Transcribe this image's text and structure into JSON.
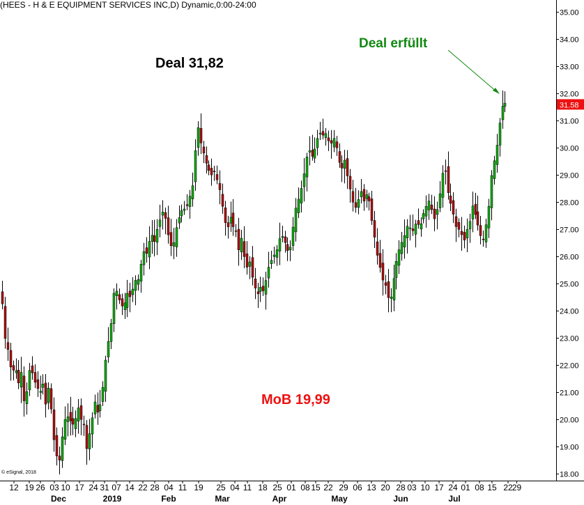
{
  "chart_data": {
    "type": "candlestick",
    "title": "(HEES - H & E EQUIPMENT SERVICES INC,D) Dynamic,0:00-24:00",
    "credit": "© eSignal, 2018",
    "last_price": "31.58",
    "ylim": [
      17.7,
      35.6
    ],
    "y_ticks": [
      "18.00",
      "19.00",
      "20.00",
      "21.00",
      "22.00",
      "23.00",
      "24.00",
      "25.00",
      "26.00",
      "27.00",
      "28.00",
      "29.00",
      "30.00",
      "31.00",
      "32.00",
      "33.00",
      "34.00",
      "35.00"
    ],
    "x_ticks": [
      "12",
      "19",
      "26",
      "03",
      "10",
      "17",
      "24",
      "31",
      "07",
      "14",
      "22",
      "28",
      "04",
      "11",
      "19",
      "25",
      "04",
      "11",
      "18",
      "25",
      "01",
      "08",
      "15",
      "22",
      "29",
      "06",
      "13",
      "20",
      "28",
      "03",
      "10",
      "17",
      "24",
      "01",
      "08",
      "15",
      "22",
      "29"
    ],
    "months": [
      "Dec",
      "2019",
      "Feb",
      "Mar",
      "Apr",
      "May",
      "Jun",
      "Jul"
    ],
    "colors": {
      "up": "#11aa11",
      "down": "#aa1111",
      "accent": "#ee1111"
    },
    "annotations": [
      {
        "text": "Deal 31,82",
        "color": "#000000"
      },
      {
        "text": "Deal erfüllt",
        "color": "#118811"
      },
      {
        "text": "MoB 19,99",
        "color": "#ee1111"
      }
    ],
    "series_path": [
      [
        0,
        25.0
      ],
      [
        3,
        24.7
      ],
      [
        7,
        23.8
      ],
      [
        10,
        22.5
      ],
      [
        14,
        22.6
      ],
      [
        18,
        21.6
      ],
      [
        23,
        22.0
      ],
      [
        28,
        21.3
      ],
      [
        33,
        21.8
      ],
      [
        37,
        20.4
      ],
      [
        41,
        21.2
      ],
      [
        45,
        22.0
      ],
      [
        50,
        21.5
      ],
      [
        54,
        21.2
      ],
      [
        59,
        21.0
      ],
      [
        65,
        21.4
      ],
      [
        69,
        20.0
      ],
      [
        72,
        21.5
      ],
      [
        76,
        20.1
      ],
      [
        80,
        19.0
      ],
      [
        86,
        18.3
      ],
      [
        91,
        19.4
      ],
      [
        96,
        20.2
      ],
      [
        101,
        20.0
      ],
      [
        106,
        19.8
      ],
      [
        110,
        20.0
      ],
      [
        115,
        20.5
      ],
      [
        118,
        20.0
      ],
      [
        122,
        19.8
      ],
      [
        126,
        18.9
      ],
      [
        130,
        19.5
      ],
      [
        134,
        20.1
      ],
      [
        138,
        20.7
      ],
      [
        142,
        20.2
      ],
      [
        146,
        20.6
      ],
      [
        150,
        21.3
      ],
      [
        154,
        22.4
      ],
      [
        158,
        23.0
      ],
      [
        162,
        23.7
      ],
      [
        166,
        25.0
      ],
      [
        170,
        24.6
      ],
      [
        174,
        24.3
      ],
      [
        178,
        24.1
      ],
      [
        182,
        24.4
      ],
      [
        186,
        24.8
      ],
      [
        190,
        24.3
      ],
      [
        194,
        25.2
      ],
      [
        199,
        25.0
      ],
      [
        203,
        25.6
      ],
      [
        208,
        26.2
      ],
      [
        212,
        26.1
      ],
      [
        216,
        26.6
      ],
      [
        220,
        26.8
      ],
      [
        224,
        26.5
      ],
      [
        228,
        27.1
      ],
      [
        232,
        27.4
      ],
      [
        236,
        27.7
      ],
      [
        240,
        27.3
      ],
      [
        244,
        26.6
      ],
      [
        248,
        26.3
      ],
      [
        252,
        26.6
      ],
      [
        256,
        27.3
      ],
      [
        260,
        27.5
      ],
      [
        264,
        27.8
      ],
      [
        268,
        27.7
      ],
      [
        272,
        28.0
      ],
      [
        276,
        28.4
      ],
      [
        280,
        28.8
      ],
      [
        284,
        31.1
      ],
      [
        288,
        30.3
      ],
      [
        292,
        30.0
      ],
      [
        296,
        29.5
      ],
      [
        300,
        29.3
      ],
      [
        304,
        28.9
      ],
      [
        308,
        29.2
      ],
      [
        312,
        28.9
      ],
      [
        316,
        28.6
      ],
      [
        320,
        28.0
      ],
      [
        324,
        27.3
      ],
      [
        328,
        27.0
      ],
      [
        332,
        27.5
      ],
      [
        336,
        27.1
      ],
      [
        340,
        27.0
      ],
      [
        344,
        26.2
      ],
      [
        348,
        26.7
      ],
      [
        352,
        26.0
      ],
      [
        356,
        25.6
      ],
      [
        360,
        25.8
      ],
      [
        364,
        25.2
      ],
      [
        368,
        24.8
      ],
      [
        372,
        24.6
      ],
      [
        376,
        24.9
      ],
      [
        380,
        24.7
      ],
      [
        384,
        25.2
      ],
      [
        388,
        25.7
      ],
      [
        392,
        25.9
      ],
      [
        396,
        26.1
      ],
      [
        400,
        26.3
      ],
      [
        404,
        26.8
      ],
      [
        408,
        26.7
      ],
      [
        412,
        26.4
      ],
      [
        416,
        26.1
      ],
      [
        420,
        26.5
      ],
      [
        424,
        27.5
      ],
      [
        428,
        28.0
      ],
      [
        432,
        28.2
      ],
      [
        436,
        28.8
      ],
      [
        440,
        29.3
      ],
      [
        444,
        30.1
      ],
      [
        448,
        29.6
      ],
      [
        452,
        29.8
      ],
      [
        456,
        30.2
      ],
      [
        460,
        30.6
      ],
      [
        464,
        30.4
      ],
      [
        468,
        30.6
      ],
      [
        472,
        30.3
      ],
      [
        476,
        30.1
      ],
      [
        480,
        30.4
      ],
      [
        484,
        30.1
      ],
      [
        488,
        29.5
      ],
      [
        492,
        29.2
      ],
      [
        496,
        29.6
      ],
      [
        500,
        29.0
      ],
      [
        504,
        28.5
      ],
      [
        508,
        28.0
      ],
      [
        512,
        27.8
      ],
      [
        516,
        28.1
      ],
      [
        520,
        28.4
      ],
      [
        524,
        28.0
      ],
      [
        528,
        28.3
      ],
      [
        532,
        28.0
      ],
      [
        536,
        27.2
      ],
      [
        540,
        26.6
      ],
      [
        544,
        25.9
      ],
      [
        548,
        25.5
      ],
      [
        552,
        25.0
      ],
      [
        556,
        24.9
      ],
      [
        560,
        24.3
      ],
      [
        564,
        24.6
      ],
      [
        568,
        25.5
      ],
      [
        572,
        26.0
      ],
      [
        576,
        26.4
      ],
      [
        580,
        26.6
      ],
      [
        584,
        26.9
      ],
      [
        588,
        27.3
      ],
      [
        592,
        26.8
      ],
      [
        596,
        27.1
      ],
      [
        600,
        27.3
      ],
      [
        604,
        27.0
      ],
      [
        608,
        27.5
      ],
      [
        612,
        27.7
      ],
      [
        616,
        28.1
      ],
      [
        620,
        27.9
      ],
      [
        624,
        27.3
      ],
      [
        628,
        27.6
      ],
      [
        632,
        28.1
      ],
      [
        636,
        29.0
      ],
      [
        640,
        29.3
      ],
      [
        644,
        28.4
      ],
      [
        648,
        28.0
      ],
      [
        652,
        27.6
      ],
      [
        656,
        27.1
      ],
      [
        660,
        27.0
      ],
      [
        664,
        26.8
      ],
      [
        668,
        26.6
      ],
      [
        672,
        27.0
      ],
      [
        676,
        27.3
      ],
      [
        680,
        27.9
      ],
      [
        684,
        27.5
      ],
      [
        688,
        27.1
      ],
      [
        692,
        26.7
      ],
      [
        696,
        26.6
      ],
      [
        700,
        27.3
      ],
      [
        704,
        28.0
      ],
      [
        708,
        29.3
      ],
      [
        712,
        29.6
      ],
      [
        716,
        30.3
      ],
      [
        720,
        31.2
      ],
      [
        724,
        31.7
      ],
      [
        728,
        31.6
      ]
    ]
  }
}
